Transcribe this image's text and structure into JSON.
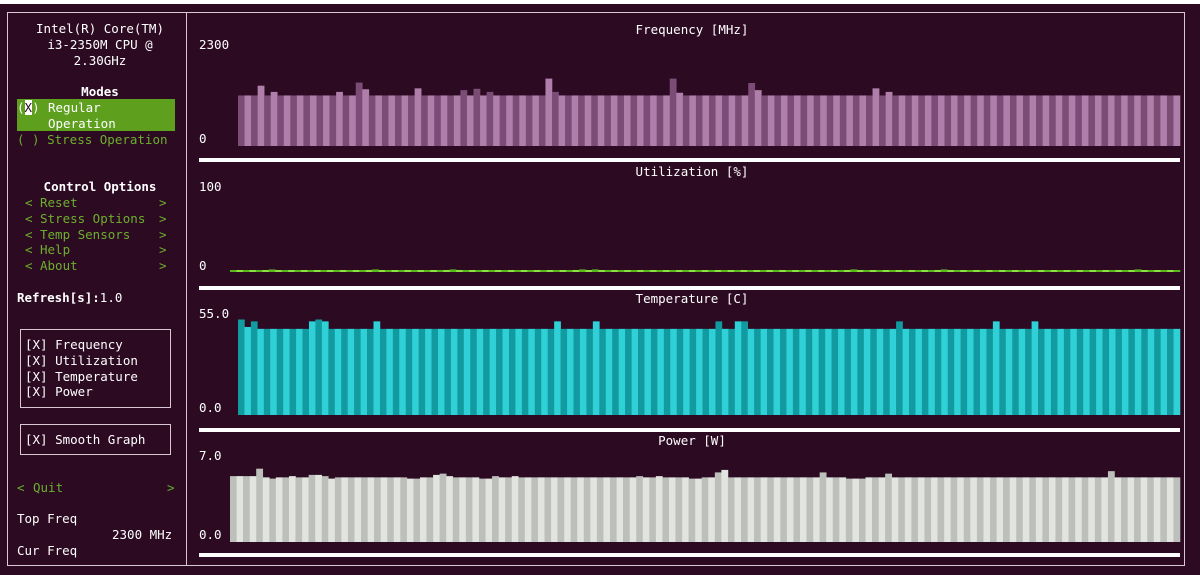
{
  "cpu_name": [
    "Intel(R) Core(TM)",
    "i3-2350M CPU @",
    "2.30GHz"
  ],
  "modes": {
    "title": "Modes",
    "regular_check": "(X)",
    "regular_label_1": "Regular",
    "regular_label_2": "Operation",
    "stress_label": "( ) Stress Operation"
  },
  "control": {
    "title": "Control Options",
    "items": [
      {
        "label": "Reset"
      },
      {
        "label": "Stress Options"
      },
      {
        "label": "Temp Sensors"
      },
      {
        "label": "Help"
      },
      {
        "label": "About"
      }
    ],
    "left_arrow": "<",
    "right_arrow": ">"
  },
  "refresh": {
    "label": "Refresh[s]:",
    "value": "1.0"
  },
  "graph_toggles": [
    "[X] Frequency",
    "[X] Utilization",
    "[X] Temperature",
    "[X] Power"
  ],
  "smooth_graph": "[X] Smooth Graph",
  "quit": {
    "label": "Quit",
    "left": "<",
    "right": ">"
  },
  "top_freq": {
    "label": "Top Freq",
    "value": "2300 MHz"
  },
  "cur_freq": {
    "label": "Cur Freq"
  },
  "colors": {
    "frequency": [
      "#7a4c76",
      "#b07eaa"
    ],
    "utilization": [
      "#58b81d",
      "#8ee23f"
    ],
    "temperature": [
      "#129aa1",
      "#2fd1d7"
    ],
    "power": [
      "#bcbfba",
      "#e2e4e0"
    ]
  },
  "chart_data": [
    {
      "type": "bar",
      "title": "Frequency [MHz]",
      "ylim": [
        0,
        2300
      ],
      "tick_labels": [
        "2300",
        "0"
      ],
      "values": [
        1140,
        1140,
        1140,
        1360,
        1140,
        1220,
        1140,
        1140,
        1140,
        1140,
        1140,
        1140,
        1140,
        1140,
        1140,
        1220,
        1140,
        1140,
        1430,
        1280,
        1140,
        1140,
        1140,
        1140,
        1140,
        1140,
        1140,
        1300,
        1140,
        1140,
        1140,
        1140,
        1140,
        1140,
        1260,
        1140,
        1290,
        1140,
        1220,
        1140,
        1140,
        1140,
        1140,
        1140,
        1140,
        1140,
        1140,
        1520,
        1220,
        1140,
        1140,
        1140,
        1140,
        1140,
        1140,
        1140,
        1140,
        1140,
        1140,
        1140,
        1140,
        1140,
        1140,
        1140,
        1140,
        1140,
        1520,
        1200,
        1140,
        1140,
        1140,
        1140,
        1140,
        1140,
        1140,
        1140,
        1140,
        1140,
        1420,
        1260,
        1140,
        1140,
        1140,
        1140,
        1140,
        1140,
        1140,
        1140,
        1140,
        1140,
        1140,
        1140,
        1140,
        1140,
        1140,
        1140,
        1140,
        1300,
        1140,
        1220,
        1140,
        1140,
        1140,
        1140,
        1140,
        1140,
        1140,
        1140,
        1140,
        1140,
        1140,
        1140,
        1140,
        1140,
        1140,
        1140,
        1140,
        1140,
        1140,
        1140,
        1140,
        1140,
        1140,
        1140,
        1140,
        1140,
        1140,
        1140,
        1140,
        1140,
        1140,
        1140,
        1140,
        1140,
        1140,
        1140,
        1140,
        1140,
        1140,
        1140,
        1140,
        1140,
        1140,
        1140
      ]
    },
    {
      "type": "bar",
      "title": "Utilization [%]",
      "ylim": [
        0,
        100
      ],
      "tick_labels": [
        "100",
        "0"
      ],
      "values": [
        1.5,
        1.5,
        1.5,
        1.5,
        1.5,
        1.5,
        3.0,
        1.5,
        1.5,
        1.5,
        1.5,
        1.5,
        1.5,
        1.5,
        1.5,
        1.5,
        1.5,
        1.5,
        1.5,
        1.5,
        1.5,
        1.5,
        3.0,
        1.5,
        1.5,
        1.5,
        1.5,
        1.5,
        1.5,
        1.5,
        1.5,
        1.5,
        1.5,
        1.5,
        3.0,
        1.5,
        1.5,
        1.5,
        1.5,
        1.5,
        1.5,
        1.5,
        1.5,
        1.5,
        1.5,
        1.5,
        1.5,
        1.5,
        1.5,
        1.5,
        1.5,
        1.5,
        1.5,
        1.5,
        3.0,
        1.5,
        3.0,
        1.5,
        1.5,
        1.5,
        1.5,
        1.5,
        1.5,
        1.5,
        1.5,
        1.5,
        1.5,
        1.5,
        1.5,
        1.5,
        1.5,
        1.5,
        1.5,
        1.5,
        1.5,
        1.5,
        1.5,
        1.5,
        1.5,
        1.5,
        1.5,
        1.5,
        1.5,
        1.5,
        1.5,
        1.5,
        1.5,
        1.5,
        1.5,
        1.5,
        1.5,
        1.5,
        1.5,
        1.5,
        1.5,
        1.5,
        3.0,
        1.5,
        1.5,
        1.5,
        1.5,
        1.5,
        1.5,
        1.5,
        1.5,
        1.5,
        1.5,
        1.5,
        1.5,
        1.5,
        3.0,
        1.5,
        1.5,
        1.5,
        1.5,
        1.5,
        1.5,
        1.5,
        1.5,
        1.5,
        1.5,
        1.5,
        1.5,
        1.5,
        1.5,
        1.5,
        1.5,
        1.5,
        1.5,
        1.5,
        1.5,
        1.5,
        1.5,
        1.5,
        1.5,
        1.5,
        1.5,
        1.5,
        1.5,
        1.5,
        3.0,
        1.5,
        1.5,
        1.5,
        1.5,
        1.5,
        1.5
      ]
    },
    {
      "type": "bar",
      "title": "Temperature [C]",
      "ylim": [
        0,
        55
      ],
      "tick_labels": [
        "55.0",
        "0.0"
      ],
      "values": [
        51,
        47,
        50,
        46,
        46,
        46,
        46,
        46,
        46,
        46,
        46,
        50,
        51,
        50,
        46,
        46,
        46,
        46,
        46,
        46,
        46,
        50,
        46,
        46,
        46,
        46,
        46,
        46,
        46,
        46,
        46,
        46,
        46,
        46,
        46,
        46,
        46,
        46,
        46,
        46,
        46,
        46,
        46,
        46,
        46,
        46,
        46,
        46,
        46,
        50,
        46,
        46,
        46,
        46,
        46,
        50,
        46,
        46,
        46,
        46,
        46,
        46,
        46,
        46,
        46,
        46,
        46,
        46,
        46,
        46,
        46,
        46,
        46,
        46,
        50,
        46,
        46,
        50,
        50,
        46,
        46,
        46,
        46,
        46,
        46,
        46,
        46,
        46,
        46,
        46,
        46,
        46,
        46,
        46,
        46,
        46,
        46,
        46,
        46,
        46,
        46,
        46,
        50,
        46,
        46,
        46,
        46,
        46,
        46,
        46,
        46,
        46,
        46,
        46,
        46,
        46,
        46,
        50,
        46,
        46,
        46,
        46,
        46,
        50,
        46,
        46,
        46,
        46,
        46,
        46,
        46,
        46,
        46,
        46,
        46,
        46,
        46,
        46,
        46,
        46,
        46,
        46,
        46,
        46,
        46,
        46
      ]
    },
    {
      "type": "bar",
      "title": "Power [W]",
      "ylim": [
        0,
        7
      ],
      "tick_labels": [
        "7.0",
        "0.0"
      ],
      "values": [
        5.3,
        5.3,
        5.3,
        5.3,
        5.9,
        5.2,
        5.1,
        5.2,
        5.2,
        5.3,
        5.2,
        5.2,
        5.4,
        5.4,
        5.3,
        5.1,
        5.2,
        5.2,
        5.2,
        5.2,
        5.2,
        5.2,
        5.2,
        5.2,
        5.2,
        5.2,
        5.2,
        5.1,
        5.1,
        5.2,
        5.2,
        5.4,
        5.5,
        5.3,
        5.2,
        5.2,
        5.2,
        5.2,
        5.1,
        5.1,
        5.3,
        5.2,
        5.2,
        5.3,
        5.2,
        5.2,
        5.2,
        5.2,
        5.2,
        5.2,
        5.2,
        5.2,
        5.2,
        5.2,
        5.2,
        5.2,
        5.2,
        5.2,
        5.2,
        5.2,
        5.2,
        5.2,
        5.3,
        5.2,
        5.2,
        5.3,
        5.2,
        5.2,
        5.2,
        5.2,
        5.1,
        5.1,
        5.2,
        5.2,
        5.6,
        5.8,
        5.2,
        5.2,
        5.2,
        5.2,
        5.2,
        5.2,
        5.2,
        5.2,
        5.2,
        5.2,
        5.2,
        5.2,
        5.2,
        5.2,
        5.6,
        5.2,
        5.2,
        5.2,
        5.1,
        5.1,
        5.1,
        5.2,
        5.2,
        5.2,
        5.5,
        5.2,
        5.2,
        5.2,
        5.2,
        5.2,
        5.2,
        5.2,
        5.2,
        5.2,
        5.2,
        5.2,
        5.2,
        5.2,
        5.2,
        5.2,
        5.2,
        5.2,
        5.2,
        5.2,
        5.2,
        5.2,
        5.2,
        5.2,
        5.2,
        5.2,
        5.2,
        5.2,
        5.2,
        5.2,
        5.2,
        5.2,
        5.2,
        5.2,
        5.7,
        5.2,
        5.2,
        5.2,
        5.2,
        5.2,
        5.2,
        5.2,
        5.2,
        5.2,
        5.2
      ]
    }
  ]
}
